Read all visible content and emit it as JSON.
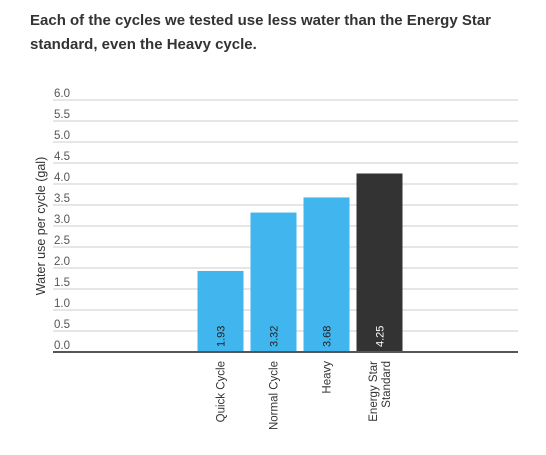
{
  "chart_data": {
    "type": "bar",
    "title": "Each of the cycles we tested use less water than the Energy Star standard, even the Heavy cycle.",
    "ylabel": "Water use per cycle (gal)",
    "xlabel": "",
    "ylim": [
      0,
      6.0
    ],
    "yticks": [
      "0.0",
      "0.5",
      "1.0",
      "1.5",
      "2.0",
      "2.5",
      "3.0",
      "3.5",
      "4.0",
      "4.5",
      "5.0",
      "5.5",
      "6.0"
    ],
    "grid": true,
    "legend": "none",
    "categories": [
      "",
      "",
      "Quick Cycle",
      "Normal Cycle",
      "Heavy",
      "Energy Star Standard",
      "",
      ""
    ],
    "category_lines": [
      [],
      [],
      [
        "Quick Cycle"
      ],
      [
        "Normal Cycle"
      ],
      [
        "Heavy"
      ],
      [
        "Energy Star",
        "Standard"
      ],
      [],
      []
    ],
    "values": [
      null,
      null,
      1.93,
      3.32,
      3.68,
      4.25,
      null,
      null
    ],
    "value_labels": [
      "",
      "",
      "1.93",
      "3.32",
      "3.68",
      "4.25",
      "",
      ""
    ],
    "colors": [
      "",
      "",
      "#41b6ee",
      "#41b6ee",
      "#41b6ee",
      "#333333",
      "",
      ""
    ],
    "grid_color": "#cccccc",
    "axis_color": "#555555"
  }
}
